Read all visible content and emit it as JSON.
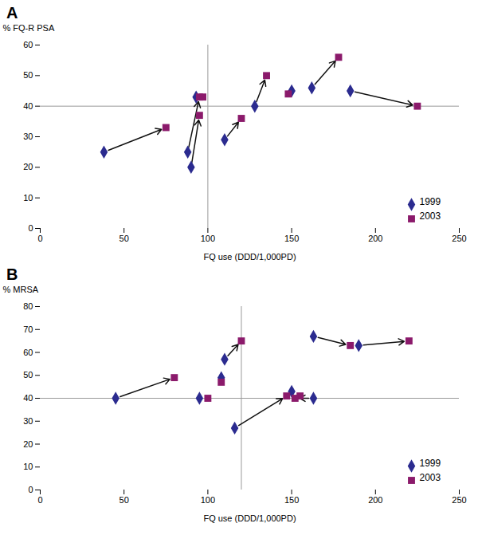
{
  "chart_data": [
    {
      "type": "scatter",
      "title": "A",
      "xlabel": "FQ use (DDD/1,000PD)",
      "ylabel": "% FQ-R PSA",
      "xlim": [
        0,
        250
      ],
      "ylim": [
        0,
        60
      ],
      "xticks": [
        0,
        50,
        100,
        150,
        200,
        250
      ],
      "yticks": [
        0,
        10,
        20,
        30,
        40,
        50,
        60
      ],
      "crosshair_x": 100,
      "crosshair_y": 40,
      "arrows": {
        "color": "#111111"
      },
      "legend": "lower right",
      "grid": false,
      "series": [
        {
          "name": "1999",
          "color": "#2b2b8f",
          "marker": "diamond",
          "x": [
            38,
            88,
            90,
            93,
            110,
            128,
            150,
            162,
            185
          ],
          "values": [
            25,
            25,
            20,
            43,
            29,
            40,
            45,
            46,
            45
          ]
        },
        {
          "name": "2003",
          "color": "#8b1a6b",
          "marker": "square",
          "x": [
            75,
            95,
            95,
            97,
            120,
            135,
            148,
            178,
            225
          ],
          "values": [
            33,
            43,
            37,
            43,
            36,
            50,
            44,
            56,
            40
          ]
        }
      ]
    },
    {
      "type": "scatter",
      "title": "B",
      "xlabel": "FQ use (DDD/1,000PD)",
      "ylabel": "% MRSA",
      "xlim": [
        0,
        250
      ],
      "ylim": [
        0,
        80
      ],
      "xticks": [
        0,
        50,
        100,
        150,
        200,
        250
      ],
      "yticks": [
        0,
        10,
        20,
        30,
        40,
        50,
        60,
        70,
        80
      ],
      "crosshair_x": 120,
      "crosshair_y": 40,
      "arrows": {
        "color": "#111111"
      },
      "legend": "lower right",
      "grid": false,
      "series": [
        {
          "name": "1999",
          "color": "#2b2b8f",
          "marker": "diamond",
          "x": [
            45,
            95,
            108,
            110,
            116,
            150,
            163,
            163,
            190
          ],
          "values": [
            40,
            40,
            49,
            57,
            27,
            43,
            40,
            67,
            63
          ]
        },
        {
          "name": "2003",
          "color": "#8b1a6b",
          "marker": "square",
          "x": [
            80,
            100,
            108,
            120,
            147,
            155,
            152,
            185,
            220
          ],
          "values": [
            49,
            40,
            47,
            65,
            41,
            41,
            40,
            63,
            65
          ]
        }
      ]
    }
  ]
}
